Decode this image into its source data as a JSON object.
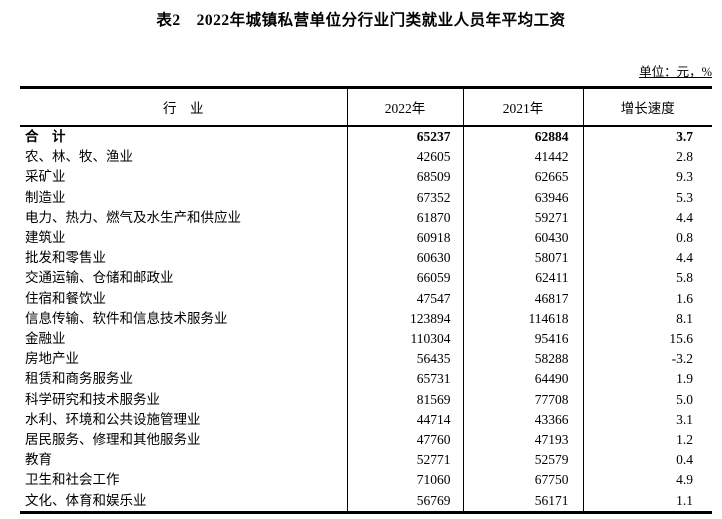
{
  "title": "表2　2022年城镇私营单位分行业门类就业人员年平均工资",
  "unit_note": "单位：元，%",
  "table": {
    "columns": [
      "行　业",
      "2022年",
      "2021年",
      "增长速度"
    ],
    "rows": [
      {
        "industry": "合　计",
        "y2022": "65237",
        "y2021": "62884",
        "growth": "3.7",
        "bold": true
      },
      {
        "industry": "农、林、牧、渔业",
        "y2022": "42605",
        "y2021": "41442",
        "growth": "2.8",
        "bold": false
      },
      {
        "industry": "采矿业",
        "y2022": "68509",
        "y2021": "62665",
        "growth": "9.3",
        "bold": false
      },
      {
        "industry": "制造业",
        "y2022": "67352",
        "y2021": "63946",
        "growth": "5.3",
        "bold": false
      },
      {
        "industry": "电力、热力、燃气及水生产和供应业",
        "y2022": "61870",
        "y2021": "59271",
        "growth": "4.4",
        "bold": false
      },
      {
        "industry": "建筑业",
        "y2022": "60918",
        "y2021": "60430",
        "growth": "0.8",
        "bold": false
      },
      {
        "industry": "批发和零售业",
        "y2022": "60630",
        "y2021": "58071",
        "growth": "4.4",
        "bold": false
      },
      {
        "industry": "交通运输、仓储和邮政业",
        "y2022": "66059",
        "y2021": "62411",
        "growth": "5.8",
        "bold": false
      },
      {
        "industry": "住宿和餐饮业",
        "y2022": "47547",
        "y2021": "46817",
        "growth": "1.6",
        "bold": false
      },
      {
        "industry": "信息传输、软件和信息技术服务业",
        "y2022": "123894",
        "y2021": "114618",
        "growth": "8.1",
        "bold": false
      },
      {
        "industry": "金融业",
        "y2022": "110304",
        "y2021": "95416",
        "growth": "15.6",
        "bold": false
      },
      {
        "industry": "房地产业",
        "y2022": "56435",
        "y2021": "58288",
        "growth": "-3.2",
        "bold": false
      },
      {
        "industry": "租赁和商务服务业",
        "y2022": "65731",
        "y2021": "64490",
        "growth": "1.9",
        "bold": false
      },
      {
        "industry": "科学研究和技术服务业",
        "y2022": "81569",
        "y2021": "77708",
        "growth": "5.0",
        "bold": false
      },
      {
        "industry": "水利、环境和公共设施管理业",
        "y2022": "44714",
        "y2021": "43366",
        "growth": "3.1",
        "bold": false
      },
      {
        "industry": "居民服务、修理和其他服务业",
        "y2022": "47760",
        "y2021": "47193",
        "growth": "1.2",
        "bold": false
      },
      {
        "industry": "教育",
        "y2022": "52771",
        "y2021": "52579",
        "growth": "0.4",
        "bold": false
      },
      {
        "industry": "卫生和社会工作",
        "y2022": "71060",
        "y2021": "67750",
        "growth": "4.9",
        "bold": false
      },
      {
        "industry": "文化、体育和娱乐业",
        "y2022": "56769",
        "y2021": "56171",
        "growth": "1.1",
        "bold": false
      }
    ]
  }
}
